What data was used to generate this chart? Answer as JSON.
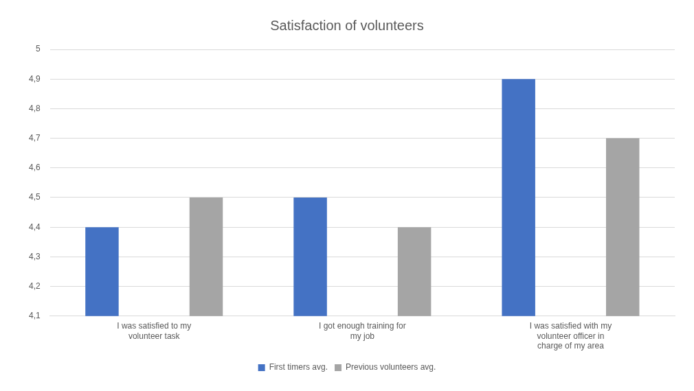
{
  "chart_data": {
    "type": "bar",
    "title": "Satisfaction of volunteers",
    "categories": [
      "I was satisfied to my volunteer task",
      "I got enough training for my job",
      "I was satisfied with my volunteer officer in charge of my area"
    ],
    "series": [
      {
        "name": "First timers avg.",
        "color": "#4472c4",
        "values": [
          4.4,
          4.5,
          4.9
        ]
      },
      {
        "name": "Previous volunteers avg.",
        "color": "#a5a5a5",
        "values": [
          4.5,
          4.4,
          4.7
        ]
      }
    ],
    "ylim": [
      4.1,
      5
    ],
    "yticks": [
      {
        "value": 4.1,
        "label": "4,1"
      },
      {
        "value": 4.2,
        "label": "4,2"
      },
      {
        "value": 4.3,
        "label": "4,3"
      },
      {
        "value": 4.4,
        "label": "4,4"
      },
      {
        "value": 4.5,
        "label": "4,5"
      },
      {
        "value": 4.6,
        "label": "4,6"
      },
      {
        "value": 4.7,
        "label": "4,7"
      },
      {
        "value": 4.8,
        "label": "4,8"
      },
      {
        "value": 4.9,
        "label": "4,9"
      },
      {
        "value": 5,
        "label": "5"
      }
    ],
    "grid": "y",
    "legend": "bottom"
  }
}
